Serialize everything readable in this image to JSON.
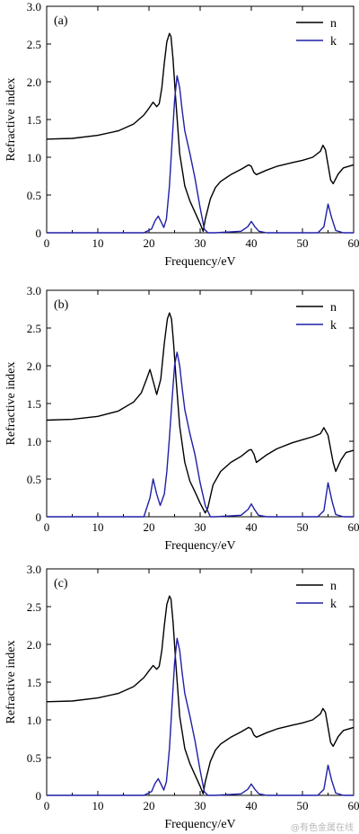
{
  "colors": {
    "n": "#000000",
    "k": "#1f1fa8"
  },
  "watermark": "@有色金属在线",
  "chart_data": [
    {
      "type": "line",
      "panel_label": "(a)",
      "xlabel": "Frequency/eV",
      "ylabel": "Refractive index",
      "xlim": [
        0,
        60
      ],
      "ylim": [
        0,
        3.0
      ],
      "xticks": [
        0,
        10,
        20,
        30,
        40,
        50,
        60
      ],
      "xtick_labels": [
        "0",
        "10",
        "20",
        "30",
        "40",
        "50",
        "60"
      ],
      "yticks": [
        0.5,
        1.0,
        1.5,
        2.0,
        2.5,
        3.0
      ],
      "ytick_labels": [
        "0.5",
        "1.0",
        "1.5",
        "2.0",
        "2.5",
        "3.0"
      ],
      "legend_position": "top-right",
      "series": [
        {
          "name": "n",
          "color": "#000000",
          "x": [
            0,
            5,
            10,
            14,
            17,
            19,
            20,
            20.8,
            21.5,
            22,
            22.5,
            23,
            23.5,
            24,
            24.3,
            24.7,
            25.2,
            26,
            27,
            28,
            29,
            30,
            30.6,
            31,
            32,
            33,
            34,
            36,
            38,
            39.5,
            40,
            40.5,
            41,
            43,
            45,
            48,
            50,
            52,
            53.5,
            54,
            54.5,
            55,
            55.5,
            56,
            57,
            58,
            60
          ],
          "y": [
            1.24,
            1.25,
            1.29,
            1.35,
            1.44,
            1.56,
            1.65,
            1.73,
            1.67,
            1.71,
            1.92,
            2.25,
            2.53,
            2.64,
            2.6,
            2.3,
            1.8,
            1.05,
            0.62,
            0.42,
            0.27,
            0.12,
            0.02,
            0.18,
            0.45,
            0.6,
            0.68,
            0.77,
            0.84,
            0.9,
            0.88,
            0.8,
            0.77,
            0.83,
            0.88,
            0.93,
            0.96,
            1.0,
            1.08,
            1.16,
            1.1,
            0.9,
            0.7,
            0.65,
            0.78,
            0.86,
            0.9
          ]
        },
        {
          "name": "k",
          "color": "#1f1fa8",
          "x": [
            0,
            19,
            20.5,
            21.2,
            21.8,
            22.4,
            22.9,
            23.4,
            24,
            24.5,
            25,
            25.5,
            26,
            26.5,
            27,
            28,
            29,
            30,
            30.8,
            31.5,
            33,
            38,
            39.3,
            40,
            40.7,
            41.5,
            43,
            53,
            54.2,
            55,
            55.7,
            56.5,
            58,
            60
          ],
          "y": [
            0.0,
            0.0,
            0.05,
            0.16,
            0.22,
            0.14,
            0.07,
            0.18,
            0.62,
            1.2,
            1.75,
            2.08,
            1.92,
            1.62,
            1.35,
            1.05,
            0.72,
            0.33,
            0.05,
            0.0,
            0.0,
            0.02,
            0.08,
            0.15,
            0.08,
            0.02,
            0.0,
            0.0,
            0.08,
            0.38,
            0.2,
            0.03,
            0.0,
            0.0
          ]
        }
      ]
    },
    {
      "type": "line",
      "panel_label": "(b)",
      "xlabel": "Frequency/eV",
      "ylabel": "Refractive index",
      "xlim": [
        0,
        60
      ],
      "ylim": [
        0,
        3.0
      ],
      "xticks": [
        0,
        10,
        20,
        30,
        40,
        50,
        60
      ],
      "xtick_labels": [
        "0",
        "10",
        "20",
        "30",
        "40",
        "50",
        "60"
      ],
      "yticks": [
        0.5,
        1.0,
        1.5,
        2.0,
        2.5,
        3.0
      ],
      "ytick_labels": [
        "0.5",
        "1.0",
        "1.5",
        "2.0",
        "2.5",
        "3.0"
      ],
      "legend_position": "top-right",
      "series": [
        {
          "name": "n",
          "color": "#000000",
          "x": [
            0,
            5,
            10,
            14,
            17,
            18.5,
            19.5,
            20.2,
            21,
            21.5,
            22.3,
            23,
            23.6,
            24,
            24.4,
            24.8,
            25.3,
            26,
            27,
            28,
            29,
            30,
            31,
            31.5,
            32.5,
            34,
            36,
            38,
            39.5,
            40,
            40.5,
            41,
            43,
            45,
            48,
            50,
            52,
            53.5,
            54.2,
            55,
            56,
            56.5,
            57.5,
            58.5,
            60
          ],
          "y": [
            1.28,
            1.29,
            1.33,
            1.4,
            1.52,
            1.64,
            1.82,
            1.95,
            1.75,
            1.62,
            1.82,
            2.3,
            2.62,
            2.7,
            2.62,
            2.3,
            1.82,
            1.2,
            0.72,
            0.47,
            0.33,
            0.18,
            0.05,
            0.12,
            0.42,
            0.6,
            0.72,
            0.8,
            0.88,
            0.89,
            0.83,
            0.72,
            0.82,
            0.9,
            0.98,
            1.02,
            1.06,
            1.1,
            1.18,
            1.08,
            0.72,
            0.6,
            0.75,
            0.85,
            0.88
          ]
        },
        {
          "name": "k",
          "color": "#1f1fa8",
          "x": [
            0,
            19,
            20.2,
            20.8,
            21.5,
            22.2,
            23,
            23.5,
            24,
            24.5,
            25,
            25.5,
            26,
            26.5,
            27,
            28,
            29,
            30,
            31,
            32,
            33,
            38,
            39.4,
            40,
            40.6,
            41.4,
            43,
            53,
            54.2,
            55,
            55.8,
            56.5,
            58,
            60
          ],
          "y": [
            0.0,
            0.0,
            0.25,
            0.5,
            0.3,
            0.15,
            0.3,
            0.6,
            1.05,
            1.55,
            2.0,
            2.18,
            2.0,
            1.7,
            1.42,
            1.1,
            0.82,
            0.45,
            0.15,
            0.0,
            0.0,
            0.02,
            0.1,
            0.17,
            0.1,
            0.02,
            0.0,
            0.0,
            0.08,
            0.45,
            0.2,
            0.03,
            0.0,
            0.0
          ]
        }
      ]
    },
    {
      "type": "line",
      "panel_label": "(c)",
      "xlabel": "Frequency/eV",
      "ylabel": "Refractive index",
      "xlim": [
        0,
        60
      ],
      "ylim": [
        0,
        3.0
      ],
      "xticks": [
        0,
        10,
        20,
        30,
        40,
        50,
        60
      ],
      "xtick_labels": [
        "0",
        "10",
        "20",
        "30",
        "40",
        "50",
        "60"
      ],
      "yticks": [
        0.5,
        1.0,
        1.5,
        2.0,
        2.5,
        3.0
      ],
      "ytick_labels": [
        "0.5",
        "1.0",
        "1.5",
        "2.0",
        "2.5",
        "3.0"
      ],
      "legend_position": "top-right",
      "series": [
        {
          "name": "n",
          "color": "#000000",
          "x": [
            0,
            5,
            10,
            14,
            17,
            19,
            20,
            20.8,
            21.5,
            22,
            22.5,
            23,
            23.5,
            24,
            24.3,
            24.7,
            25.2,
            26,
            27,
            28,
            29,
            30,
            30.6,
            31,
            32,
            33,
            34,
            36,
            38,
            39.5,
            40,
            40.5,
            41,
            43,
            45,
            48,
            50,
            52,
            53.5,
            54,
            54.5,
            55,
            55.5,
            56,
            57,
            58,
            60
          ],
          "y": [
            1.24,
            1.25,
            1.29,
            1.35,
            1.44,
            1.56,
            1.65,
            1.72,
            1.67,
            1.71,
            1.92,
            2.25,
            2.53,
            2.64,
            2.6,
            2.3,
            1.8,
            1.05,
            0.62,
            0.42,
            0.27,
            0.12,
            0.02,
            0.18,
            0.45,
            0.6,
            0.68,
            0.77,
            0.84,
            0.9,
            0.88,
            0.8,
            0.77,
            0.83,
            0.88,
            0.93,
            0.96,
            1.0,
            1.08,
            1.15,
            1.1,
            0.9,
            0.7,
            0.65,
            0.78,
            0.86,
            0.9
          ]
        },
        {
          "name": "k",
          "color": "#1f1fa8",
          "x": [
            0,
            19,
            20.5,
            21.2,
            21.8,
            22.4,
            22.9,
            23.4,
            24,
            24.5,
            25,
            25.5,
            26,
            26.5,
            27,
            28,
            29,
            30,
            30.8,
            31.5,
            33,
            38,
            39.3,
            40,
            40.7,
            41.5,
            43,
            53,
            54.2,
            55,
            55.7,
            56.5,
            58,
            60
          ],
          "y": [
            0.0,
            0.0,
            0.05,
            0.16,
            0.22,
            0.14,
            0.07,
            0.18,
            0.62,
            1.2,
            1.75,
            2.08,
            1.92,
            1.62,
            1.35,
            1.05,
            0.72,
            0.33,
            0.05,
            0.0,
            0.0,
            0.02,
            0.08,
            0.15,
            0.08,
            0.02,
            0.0,
            0.0,
            0.08,
            0.4,
            0.2,
            0.03,
            0.0,
            0.0
          ]
        }
      ]
    }
  ]
}
